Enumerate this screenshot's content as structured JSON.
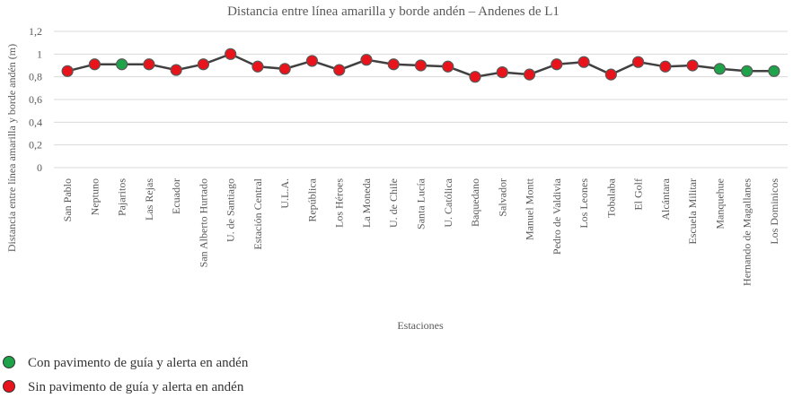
{
  "chart_data": {
    "type": "line",
    "title": "Distancia entre línea amarilla y borde andén – Andenes de L1",
    "xlabel": "Estaciones",
    "ylabel": "Distancia entre línea amarilla y borde andén (m)",
    "ylim": [
      0,
      1.2
    ],
    "yticks": [
      "0",
      "0,2",
      "0,4",
      "0,6",
      "0,8",
      "1",
      "1,2"
    ],
    "grid": true,
    "legend_position": "bottom-left",
    "line_color": "#404040",
    "colors": {
      "green": "#1fa34a",
      "red": "#e8131b"
    },
    "legend": [
      {
        "label": "Con pavimento de guía y alerta en andén",
        "color": "#1fa34a"
      },
      {
        "label": "Sin pavimento de guía y alerta en andén",
        "color": "#e8131b"
      }
    ],
    "categories": [
      "San Pablo",
      "Neptuno",
      "Pajaritos",
      "Las Rejas",
      "Ecuador",
      "San Alberto Hurtado",
      "U. de Santiago",
      "Estación Central",
      "U.L.A.",
      "República",
      "Los Héroes",
      "La Moneda",
      "U. de Chile",
      "Santa Lucía",
      "U. Católica",
      "Baquedano",
      "Salvador",
      "Manuel Montt",
      "Pedro de Valdivia",
      "Los Leones",
      "Tobalaba",
      "El Golf",
      "Alcántara",
      "Escuela Militar",
      "Manquehue",
      "Hernando de Magallanes",
      "Los Dominicos"
    ],
    "values": [
      0.85,
      0.91,
      0.91,
      0.91,
      0.86,
      0.91,
      1.0,
      0.89,
      0.87,
      0.94,
      0.86,
      0.95,
      0.91,
      0.9,
      0.89,
      0.8,
      0.84,
      0.82,
      0.91,
      0.93,
      0.82,
      0.93,
      0.89,
      0.9,
      0.87,
      0.85,
      0.85
    ],
    "point_groups": [
      "red",
      "red",
      "green",
      "red",
      "red",
      "red",
      "red",
      "red",
      "red",
      "red",
      "red",
      "red",
      "red",
      "red",
      "red",
      "red",
      "red",
      "red",
      "red",
      "red",
      "red",
      "red",
      "red",
      "red",
      "green",
      "green",
      "green"
    ]
  }
}
